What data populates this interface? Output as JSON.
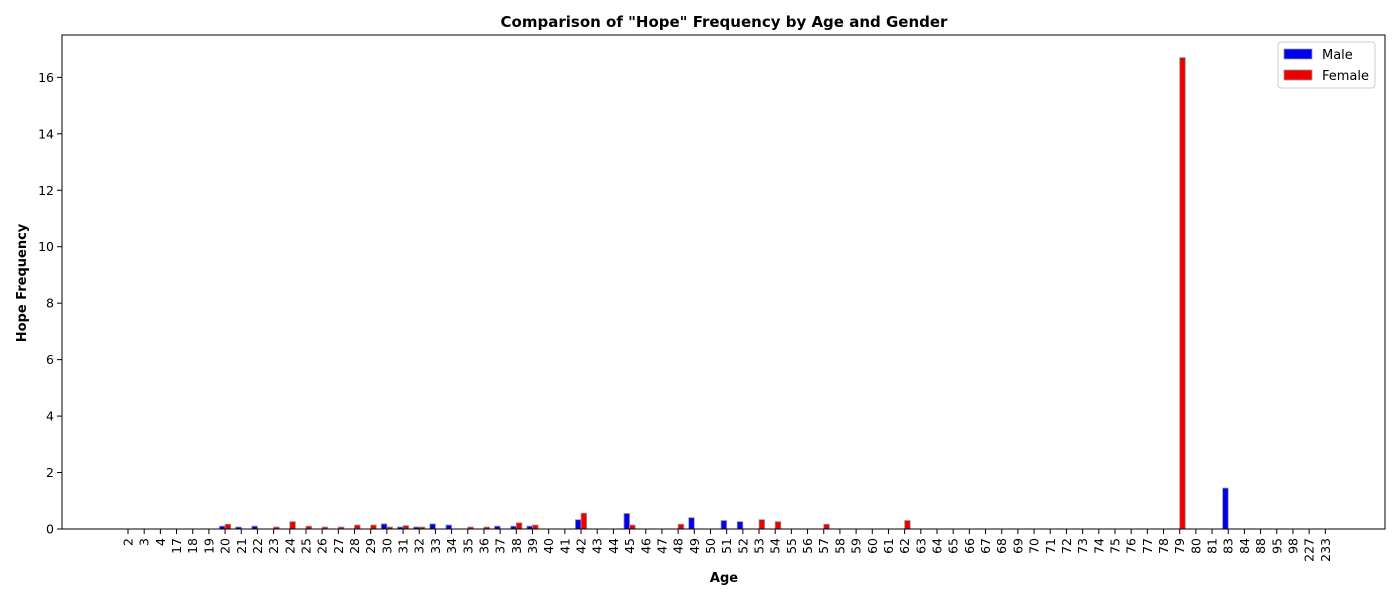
{
  "chart_data": {
    "type": "bar",
    "title": "Comparison of \"Hope\" Frequency by Age and Gender",
    "xlabel": "Age",
    "ylabel": "Hope Frequency",
    "ylim": [
      0,
      17.5
    ],
    "yticks": [
      0,
      2,
      4,
      6,
      8,
      10,
      12,
      14,
      16
    ],
    "grid": false,
    "legend_position": "top-right",
    "categories": [
      "2",
      "3",
      "4",
      "17",
      "18",
      "19",
      "20",
      "21",
      "22",
      "23",
      "24",
      "25",
      "26",
      "27",
      "28",
      "29",
      "30",
      "31",
      "32",
      "33",
      "34",
      "35",
      "36",
      "37",
      "38",
      "39",
      "40",
      "41",
      "42",
      "43",
      "44",
      "45",
      "46",
      "47",
      "48",
      "49",
      "50",
      "51",
      "52",
      "53",
      "54",
      "55",
      "56",
      "57",
      "58",
      "59",
      "60",
      "61",
      "62",
      "63",
      "64",
      "65",
      "66",
      "67",
      "68",
      "69",
      "70",
      "71",
      "72",
      "73",
      "74",
      "75",
      "76",
      "77",
      "78",
      "79",
      "80",
      "81",
      "83",
      "84",
      "88",
      "95",
      "98",
      "227",
      "233"
    ],
    "series": [
      {
        "name": "Male",
        "color": "#0000ee",
        "values": [
          0,
          0,
          0,
          0,
          0,
          0,
          0.1,
          0.07,
          0.1,
          0,
          0,
          0,
          0,
          0,
          0,
          0,
          0.18,
          0.07,
          0.07,
          0.18,
          0.14,
          0,
          0,
          0.1,
          0.1,
          0.1,
          0,
          0,
          0.33,
          0,
          0,
          0.55,
          0,
          0,
          0,
          0.4,
          0,
          0.3,
          0.26,
          0,
          0,
          0,
          0,
          0,
          0,
          0,
          0,
          0,
          0,
          0,
          0,
          0,
          0,
          0,
          0,
          0,
          0,
          0,
          0,
          0,
          0,
          0,
          0,
          0,
          0,
          0,
          0,
          0,
          1.45,
          0,
          0,
          0,
          0,
          0,
          0
        ]
      },
      {
        "name": "Female",
        "color": "#ee0000",
        "values": [
          0,
          0,
          0,
          0,
          0,
          0,
          0.17,
          0,
          0,
          0.07,
          0.26,
          0.1,
          0.07,
          0.07,
          0.14,
          0.14,
          0.07,
          0.12,
          0.07,
          0,
          0,
          0.07,
          0.07,
          0,
          0.22,
          0.14,
          0,
          0,
          0.56,
          0,
          0,
          0.14,
          0,
          0,
          0.17,
          0,
          0,
          0,
          0,
          0.33,
          0.26,
          0,
          0,
          0.17,
          0,
          0,
          0,
          0,
          0.3,
          0,
          0,
          0,
          0,
          0,
          0,
          0,
          0,
          0,
          0,
          0,
          0,
          0,
          0,
          0,
          0,
          16.7,
          0,
          0,
          0,
          0,
          0,
          0,
          0,
          0,
          0
        ]
      }
    ]
  }
}
